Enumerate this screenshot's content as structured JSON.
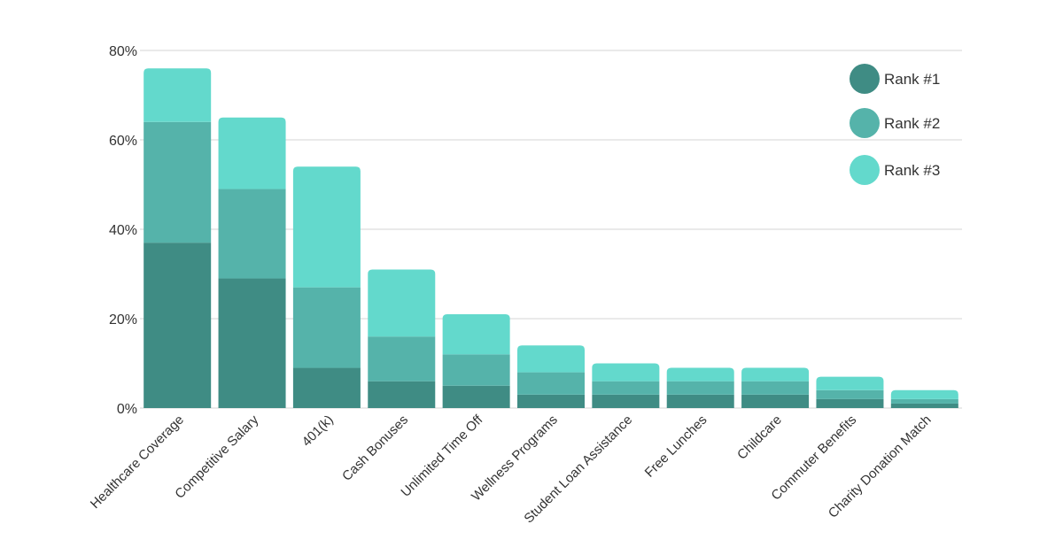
{
  "chart_data": {
    "type": "bar",
    "stacked": true,
    "title": "",
    "xlabel": "",
    "ylabel": "",
    "ylim": [
      0,
      80
    ],
    "yticks": [
      "0%",
      "20%",
      "40%",
      "60%",
      "80%"
    ],
    "y_unit": "%",
    "grid": true,
    "legend_position": "top-right",
    "categories": [
      "Healthcare Coverage",
      "Competitive Salary",
      "401(k)",
      "Cash Bonuses",
      "Unlimited Time Off",
      "Wellness Programs",
      "Student Loan Assistance",
      "Free Lunches",
      "Childcare",
      "Commuter Benefits",
      "Charity Donation Match"
    ],
    "series": [
      {
        "name": "Rank #1",
        "color": "#3f8c84",
        "values": [
          37,
          29,
          9,
          6,
          5,
          3,
          3,
          3,
          3,
          2,
          1
        ]
      },
      {
        "name": "Rank #2",
        "color": "#55b3aa",
        "values": [
          27,
          20,
          18,
          10,
          7,
          5,
          3,
          3,
          3,
          2,
          1
        ]
      },
      {
        "name": "Rank #3",
        "color": "#63d9cc",
        "values": [
          12,
          16,
          27,
          15,
          9,
          6,
          4,
          3,
          3,
          3,
          2
        ]
      }
    ]
  }
}
